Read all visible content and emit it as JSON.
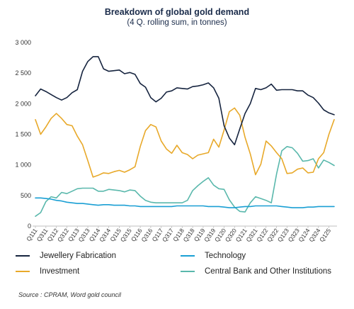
{
  "chart_data": {
    "type": "line",
    "title": "Breakdown of global gold demand",
    "subtitle": "(4 Q. rolling sum, in tonnes)",
    "ylim": [
      0,
      3000
    ],
    "yticks": [
      "0",
      "500",
      "1 000",
      "1 500",
      "2 000",
      "2 500",
      "3 000"
    ],
    "ytick_values": [
      0,
      500,
      1000,
      1500,
      2000,
      2500,
      3000
    ],
    "grid": false,
    "legend_position": "bottom",
    "x": [
      "Q111",
      "Q211",
      "Q311",
      "Q411",
      "Q112",
      "Q212",
      "Q312",
      "Q412",
      "Q113",
      "Q213",
      "Q313",
      "Q413",
      "Q114",
      "Q214",
      "Q314",
      "Q414",
      "Q115",
      "Q215",
      "Q315",
      "Q415",
      "Q116",
      "Q216",
      "Q316",
      "Q416",
      "Q117",
      "Q217",
      "Q317",
      "Q417",
      "Q118",
      "Q218",
      "Q318",
      "Q418",
      "Q119",
      "Q219",
      "Q319",
      "Q419",
      "Q120",
      "Q220",
      "Q320",
      "Q420",
      "Q121",
      "Q221",
      "Q321",
      "Q421",
      "Q122",
      "Q222",
      "Q322",
      "Q422",
      "Q123",
      "Q223",
      "Q323",
      "Q423",
      "Q124",
      "Q224",
      "Q324",
      "Q424",
      "Q125",
      "Q225"
    ],
    "xtick_labels": [
      "Q111",
      "Q311",
      "Q112",
      "Q312",
      "Q113",
      "Q313",
      "Q114",
      "Q314",
      "Q115",
      "Q315",
      "Q116",
      "Q316",
      "Q117",
      "Q317",
      "Q118",
      "Q318",
      "Q119",
      "Q319",
      "Q120",
      "Q320",
      "Q121",
      "Q321",
      "Q122",
      "Q322",
      "Q123",
      "Q323",
      "Q124",
      "Q324",
      "Q125"
    ],
    "series": [
      {
        "name": "Jewellery Fabrication",
        "color": "#16243f",
        "values": [
          2130,
          2240,
          2200,
          2150,
          2100,
          2060,
          2100,
          2180,
          2230,
          2530,
          2690,
          2770,
          2770,
          2570,
          2530,
          2540,
          2550,
          2490,
          2510,
          2480,
          2330,
          2270,
          2100,
          2030,
          2090,
          2190,
          2210,
          2260,
          2250,
          2240,
          2280,
          2290,
          2310,
          2340,
          2260,
          2090,
          1640,
          1440,
          1330,
          1590,
          1840,
          2000,
          2250,
          2230,
          2260,
          2320,
          2220,
          2230,
          2230,
          2230,
          2210,
          2210,
          2140,
          2100,
          2010,
          1900,
          1850,
          1820
        ]
      },
      {
        "name": "Investment",
        "color": "#e8a92a",
        "values": [
          1740,
          1500,
          1620,
          1760,
          1840,
          1760,
          1660,
          1640,
          1470,
          1330,
          1070,
          800,
          830,
          870,
          860,
          890,
          910,
          880,
          920,
          970,
          1300,
          1560,
          1660,
          1620,
          1390,
          1260,
          1190,
          1320,
          1200,
          1170,
          1100,
          1160,
          1180,
          1200,
          1420,
          1290,
          1570,
          1870,
          1930,
          1810,
          1450,
          1180,
          840,
          1010,
          1390,
          1310,
          1200,
          1100,
          860,
          870,
          930,
          950,
          870,
          880,
          1100,
          1200,
          1500,
          1740
        ]
      },
      {
        "name": "Technology",
        "color": "#1a9fd4",
        "values": [
          460,
          460,
          450,
          440,
          420,
          410,
          390,
          380,
          370,
          370,
          360,
          350,
          340,
          350,
          350,
          340,
          340,
          340,
          330,
          330,
          320,
          320,
          320,
          320,
          320,
          320,
          320,
          330,
          330,
          330,
          330,
          330,
          330,
          320,
          320,
          320,
          310,
          300,
          300,
          310,
          320,
          320,
          330,
          330,
          330,
          330,
          330,
          320,
          310,
          300,
          300,
          300,
          310,
          310,
          320,
          320,
          320,
          320
        ]
      },
      {
        "name": "Central Bank and Other Institutions",
        "color": "#5ab8ac",
        "values": [
          160,
          220,
          400,
          480,
          460,
          550,
          530,
          570,
          610,
          620,
          620,
          620,
          570,
          570,
          600,
          590,
          580,
          560,
          590,
          580,
          490,
          420,
          390,
          380,
          380,
          380,
          380,
          380,
          380,
          420,
          580,
          660,
          730,
          790,
          670,
          610,
          600,
          430,
          310,
          240,
          230,
          380,
          480,
          450,
          420,
          380,
          850,
          1230,
          1300,
          1280,
          1190,
          1060,
          1070,
          1100,
          950,
          1080,
          1040,
          990
        ]
      }
    ]
  },
  "source": "Source : CPRAM, Word gold council"
}
